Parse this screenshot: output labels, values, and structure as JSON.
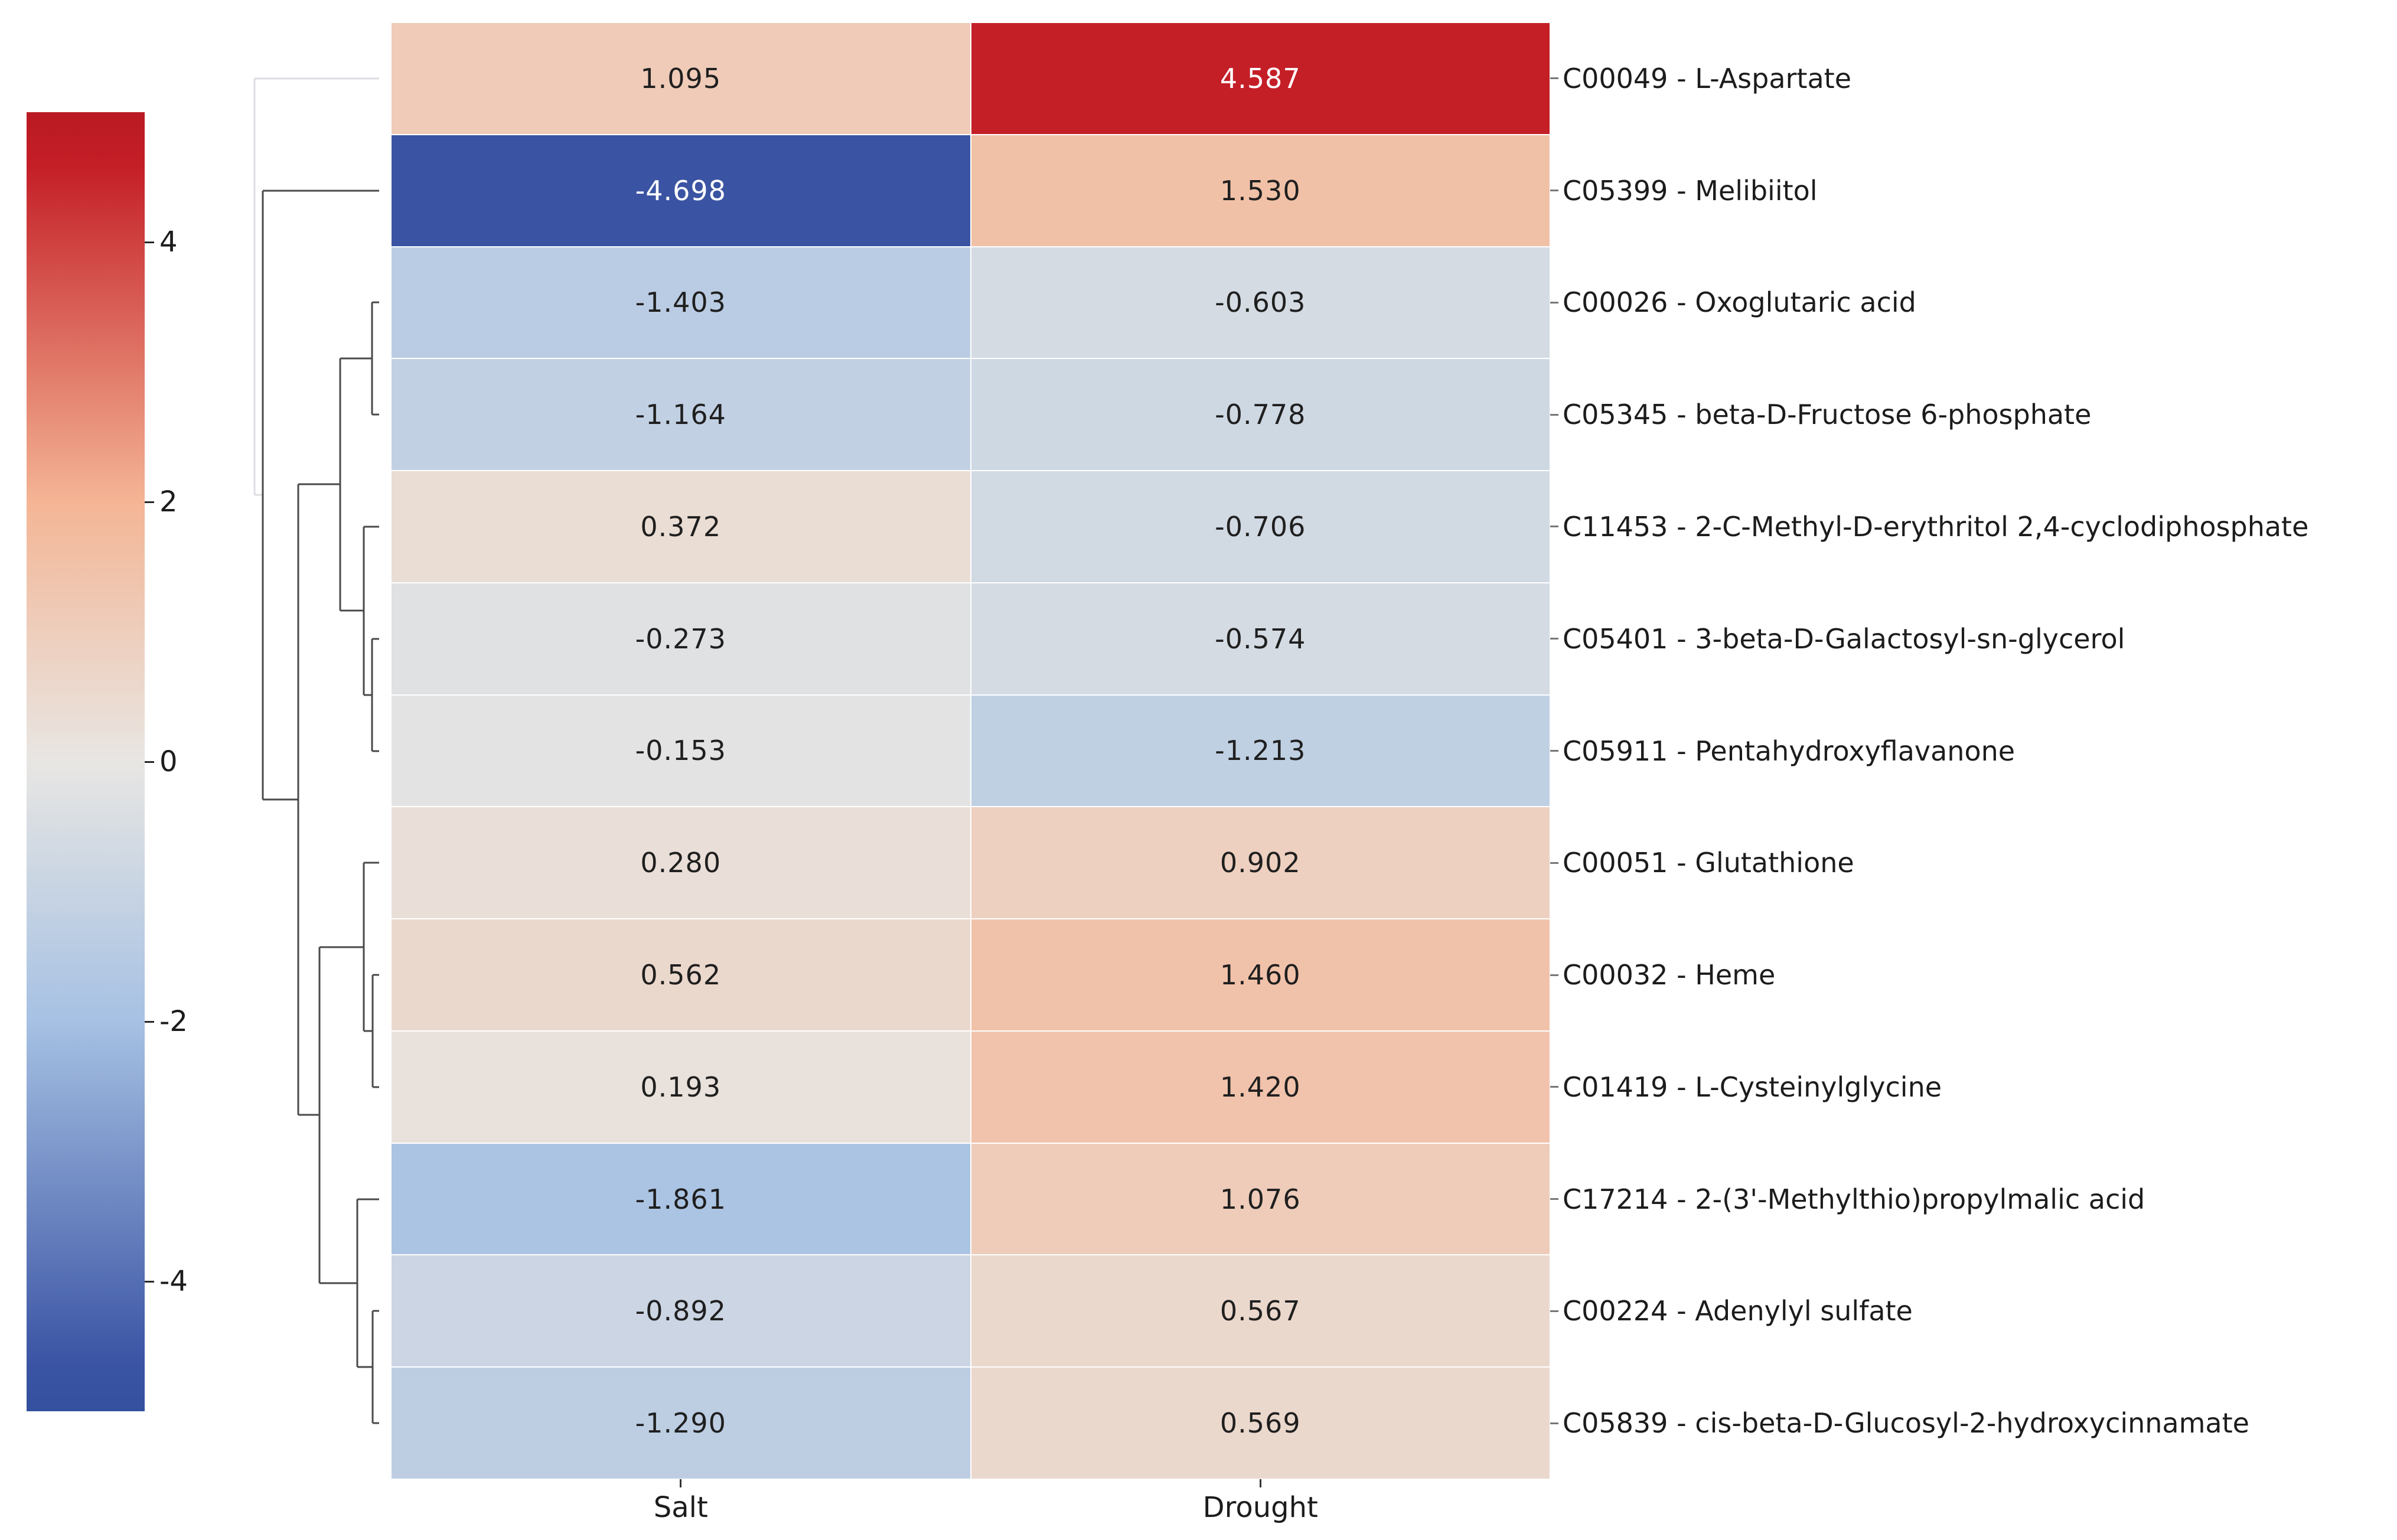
{
  "figure": {
    "kind": "clustered heatmap (clustermap) with row dendrogram and colorbar",
    "background": "#ffffff"
  },
  "chart_data": {
    "type": "heatmap",
    "title": "",
    "xlabel": "",
    "ylabel": "",
    "columns": [
      "Salt",
      "Drought"
    ],
    "rows": [
      {
        "label": "C00049 - L-Aspartate",
        "values": [
          1.095,
          4.587
        ]
      },
      {
        "label": "C05399 - Melibiitol",
        "values": [
          -4.698,
          1.53
        ]
      },
      {
        "label": "C00026 - Oxoglutaric acid",
        "values": [
          -1.403,
          -0.603
        ]
      },
      {
        "label": "C05345 - beta-D-Fructose 6-phosphate",
        "values": [
          -1.164,
          -0.778
        ]
      },
      {
        "label": "C11453 - 2-C-Methyl-D-erythritol 2,4-cyclodiphosphate",
        "values": [
          0.372,
          -0.706
        ]
      },
      {
        "label": "C05401 - 3-beta-D-Galactosyl-sn-glycerol",
        "values": [
          -0.273,
          -0.574
        ]
      },
      {
        "label": "C05911 - Pentahydroxyflavanone",
        "values": [
          -0.153,
          -1.213
        ]
      },
      {
        "label": "C00051 - Glutathione",
        "values": [
          0.28,
          0.902
        ]
      },
      {
        "label": "C00032 - Heme",
        "values": [
          0.562,
          1.46
        ]
      },
      {
        "label": "C01419 - L-Cysteinylglycine",
        "values": [
          0.193,
          1.42
        ]
      },
      {
        "label": "C17214 - 2-(3'-Methylthio)propylmalic acid",
        "values": [
          -1.861,
          1.076
        ]
      },
      {
        "label": "C00224 - Adenylyl sulfate",
        "values": [
          -0.892,
          0.567
        ]
      },
      {
        "label": "C05839 - cis-beta-D-Glucosyl-2-hydroxycinnamate",
        "values": [
          -1.29,
          0.569
        ]
      }
    ],
    "value_decimals": 3,
    "annot_white_threshold": 3.2,
    "legend_position": "left colorbar",
    "grid": false,
    "colorbar": {
      "vmin": -5,
      "vmax": 5,
      "tick_values": [
        4,
        2,
        0,
        -2,
        -4
      ],
      "tick_labels": [
        "4",
        "2",
        "0",
        "-2",
        "-4"
      ]
    },
    "colormap_stops": [
      [
        -5.0,
        "#33509e"
      ],
      [
        -4.6,
        "#3c55a5"
      ],
      [
        -2.0,
        "#a6c1e3"
      ],
      [
        0.0,
        "#e8e6e3"
      ],
      [
        2.0,
        "#f4b595"
      ],
      [
        4.6,
        "#c41e26"
      ],
      [
        5.0,
        "#ba1a24"
      ]
    ],
    "dendrogram": {
      "orientation": "left",
      "link_color": "#4a4a4a",
      "top_link_color": "#dedee3",
      "line_width": 3,
      "segments": [
        [
          431,
          133,
          642,
          133,
          1
        ],
        [
          431,
          133,
          431,
          838,
          1
        ],
        [
          431,
          838,
          445,
          838,
          1
        ],
        [
          445,
          323,
          642,
          323,
          0
        ],
        [
          445,
          323,
          445,
          1354,
          0
        ],
        [
          445,
          1354,
          505,
          1354,
          0
        ],
        [
          505,
          820,
          505,
          1888,
          0
        ],
        [
          505,
          820,
          576,
          820,
          0
        ],
        [
          576,
          607,
          576,
          1034,
          0
        ],
        [
          576,
          607,
          630,
          607,
          0
        ],
        [
          630,
          512,
          630,
          702,
          0
        ],
        [
          630,
          512,
          642,
          512,
          0
        ],
        [
          630,
          702,
          642,
          702,
          0
        ],
        [
          576,
          1034,
          616,
          1034,
          0
        ],
        [
          616,
          892,
          616,
          1177,
          0
        ],
        [
          616,
          892,
          642,
          892,
          0
        ],
        [
          616,
          1177,
          630,
          1177,
          0
        ],
        [
          630,
          1082,
          630,
          1272,
          0
        ],
        [
          630,
          1082,
          642,
          1082,
          0
        ],
        [
          630,
          1272,
          642,
          1272,
          0
        ],
        [
          505,
          1888,
          541,
          1888,
          0
        ],
        [
          541,
          1604,
          541,
          2173,
          0
        ],
        [
          541,
          1604,
          616,
          1604,
          0
        ],
        [
          616,
          1461,
          616,
          1746,
          0
        ],
        [
          616,
          1461,
          642,
          1461,
          0
        ],
        [
          616,
          1746,
          631,
          1746,
          0
        ],
        [
          631,
          1651,
          631,
          1841,
          0
        ],
        [
          631,
          1651,
          642,
          1651,
          0
        ],
        [
          631,
          1841,
          642,
          1841,
          0
        ],
        [
          541,
          2173,
          605,
          2173,
          0
        ],
        [
          605,
          2031,
          605,
          2315,
          0
        ],
        [
          605,
          2031,
          642,
          2031,
          0
        ],
        [
          605,
          2315,
          631,
          2315,
          0
        ],
        [
          631,
          2220,
          631,
          2410,
          0
        ],
        [
          631,
          2220,
          642,
          2220,
          0
        ],
        [
          631,
          2410,
          642,
          2410,
          0
        ]
      ]
    }
  }
}
